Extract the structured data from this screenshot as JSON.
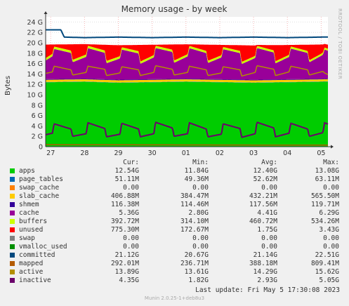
{
  "side_label": "RRDTOOL / TOBI OETIKER",
  "last_update": "Last update:  Fri May  5 17:30:08 2023",
  "version": "Munin 2.0.25-1+deb8u3",
  "legend": {
    "headers": [
      "Cur:",
      "Min:",
      "Avg:",
      "Max:"
    ],
    "rows": [
      {
        "name": "apps",
        "color": "#00cc00",
        "cur": "12.54G",
        "min": "11.84G",
        "avg": "12.40G",
        "max": "13.08G"
      },
      {
        "name": "page_tables",
        "color": "#0066b3",
        "cur": "51.11M",
        "min": "49.36M",
        "avg": "52.62M",
        "max": "63.11M"
      },
      {
        "name": "swap_cache",
        "color": "#ff8000",
        "cur": "0.00",
        "min": "0.00",
        "avg": "0.00",
        "max": "0.00"
      },
      {
        "name": "slab_cache",
        "color": "#ffcc00",
        "cur": "406.88M",
        "min": "384.47M",
        "avg": "432.21M",
        "max": "565.50M"
      },
      {
        "name": "shmem",
        "color": "#330099",
        "cur": "116.38M",
        "min": "114.46M",
        "avg": "117.56M",
        "max": "119.71M"
      },
      {
        "name": "cache",
        "color": "#990099",
        "cur": "5.36G",
        "min": "2.80G",
        "avg": "4.41G",
        "max": "6.29G"
      },
      {
        "name": "buffers",
        "color": "#ccff00",
        "cur": "392.72M",
        "min": "314.10M",
        "avg": "460.72M",
        "max": "534.26M"
      },
      {
        "name": "unused",
        "color": "#ff0000",
        "cur": "775.30M",
        "min": "172.67M",
        "avg": "1.75G",
        "max": "3.43G"
      },
      {
        "name": "swap",
        "color": "#808080",
        "cur": "0.00",
        "min": "0.00",
        "avg": "0.00",
        "max": "0.00"
      },
      {
        "name": "vmalloc_used",
        "color": "#008f00",
        "cur": "0.00",
        "min": "0.00",
        "avg": "0.00",
        "max": "0.00"
      },
      {
        "name": "committed",
        "color": "#00487d",
        "cur": "21.12G",
        "min": "20.67G",
        "avg": "21.14G",
        "max": "22.51G"
      },
      {
        "name": "mapped",
        "color": "#b35a00",
        "cur": "292.01M",
        "min": "236.71M",
        "avg": "388.18M",
        "max": "809.41M"
      },
      {
        "name": "active",
        "color": "#b38f00",
        "cur": "13.89G",
        "min": "13.61G",
        "avg": "14.29G",
        "max": "15.62G"
      },
      {
        "name": "inactive",
        "color": "#6b006b",
        "cur": "4.35G",
        "min": "1.82G",
        "avg": "2.93G",
        "max": "5.05G"
      }
    ]
  },
  "chart_data": {
    "type": "area",
    "title": "Memory usage - by week",
    "ylabel": "Bytes",
    "xlabel": "",
    "ylim": [
      0,
      25
    ],
    "y_unit": "G",
    "y_ticks": [
      0,
      2,
      4,
      6,
      8,
      10,
      12,
      14,
      16,
      18,
      20,
      22,
      24
    ],
    "y_tick_labels": [
      "0",
      "2 G",
      "4 G",
      "6 G",
      "8 G",
      "10 G",
      "12 G",
      "14 G",
      "16 G",
      "18 G",
      "20 G",
      "22 G",
      "24 G"
    ],
    "x_tick_labels": [
      "27",
      "28",
      "29",
      "30",
      "01",
      "02",
      "03",
      "04",
      "05"
    ],
    "x_ticks_days": [
      0,
      1,
      2,
      3,
      4,
      5,
      6,
      7,
      8
    ],
    "xlim_days": [
      -0.15,
      8.2
    ],
    "grid": true,
    "series": [
      {
        "name": "apps",
        "kind": "stack",
        "color": "#00cc00",
        "days": [
          -0.15,
          1,
          2,
          3,
          4,
          5,
          6,
          7,
          8,
          8.2
        ],
        "values": [
          12.4,
          12.5,
          12.3,
          12.4,
          12.5,
          12.4,
          12.3,
          12.4,
          12.5,
          12.54
        ]
      },
      {
        "name": "page_tables",
        "kind": "stack",
        "color": "#0066b3",
        "days": [
          -0.15,
          8.2
        ],
        "values": [
          0.05,
          0.05
        ]
      },
      {
        "name": "slab_cache",
        "kind": "stack",
        "color": "#ffcc00",
        "days": [
          -0.15,
          8.2
        ],
        "values": [
          0.43,
          0.41
        ]
      },
      {
        "name": "shmem",
        "kind": "stack",
        "color": "#330099",
        "days": [
          -0.15,
          8.2
        ],
        "values": [
          0.12,
          0.12
        ]
      },
      {
        "name": "cache",
        "kind": "stack",
        "color": "#990099",
        "days": [
          -0.15,
          0.05,
          0.1,
          0.6,
          0.65,
          1.05,
          1.1,
          1.6,
          1.65,
          2.05,
          2.1,
          2.6,
          2.65,
          3.05,
          3.1,
          3.6,
          3.65,
          4.05,
          4.1,
          4.6,
          4.65,
          5.05,
          5.1,
          5.6,
          5.65,
          6.05,
          6.1,
          6.6,
          6.65,
          7.05,
          7.1,
          7.6,
          7.65,
          8.05,
          8.1,
          8.2
        ],
        "values": [
          3.6,
          4.4,
          5.8,
          5.0,
          3.2,
          4.2,
          5.9,
          5.1,
          3.1,
          4.1,
          5.8,
          5.0,
          3.0,
          4.2,
          6.0,
          5.2,
          3.1,
          4.3,
          5.9,
          5.0,
          3.1,
          4.2,
          5.8,
          5.1,
          3.0,
          4.2,
          6.1,
          5.2,
          3.1,
          4.3,
          5.9,
          5.0,
          3.2,
          4.6,
          5.6,
          5.36
        ]
      },
      {
        "name": "buffers",
        "kind": "stack",
        "color": "#ccff00",
        "days": [
          -0.15,
          8.2
        ],
        "values": [
          0.46,
          0.39
        ]
      },
      {
        "name": "unused",
        "kind": "stack",
        "color": "#ff0000",
        "days": [
          -0.15,
          0.05,
          0.1,
          0.6,
          0.65,
          1.05,
          1.1,
          1.6,
          1.65,
          2.05,
          2.1,
          2.6,
          2.65,
          3.05,
          3.1,
          3.6,
          3.65,
          4.05,
          4.1,
          4.6,
          4.65,
          5.05,
          5.1,
          5.6,
          5.65,
          6.05,
          6.1,
          6.6,
          6.65,
          7.05,
          7.1,
          7.6,
          7.65,
          8.05,
          8.1,
          8.2
        ],
        "values": [
          2.6,
          1.8,
          0.4,
          1.2,
          3.0,
          2.0,
          0.3,
          1.1,
          3.1,
          2.1,
          0.4,
          1.2,
          3.2,
          2.0,
          0.2,
          1.0,
          3.1,
          1.9,
          0.3,
          1.2,
          3.1,
          2.0,
          0.4,
          1.1,
          3.2,
          2.0,
          0.2,
          1.0,
          3.1,
          1.9,
          0.3,
          1.2,
          3.0,
          1.6,
          0.7,
          0.78
        ]
      },
      {
        "name": "committed",
        "kind": "line",
        "color": "#00487d",
        "days": [
          -0.15,
          0.3,
          0.4,
          1.0,
          2.0,
          3.0,
          4.0,
          5.0,
          6.0,
          7.0,
          8.0,
          8.2
        ],
        "values": [
          22.5,
          22.5,
          21.1,
          21.0,
          21.1,
          21.0,
          21.1,
          21.0,
          21.1,
          21.0,
          21.1,
          21.12
        ]
      },
      {
        "name": "active",
        "kind": "line",
        "color": "#b38f00",
        "days": [
          -0.15,
          0.05,
          0.1,
          0.6,
          0.65,
          1.05,
          1.1,
          1.6,
          1.65,
          2.05,
          2.1,
          2.6,
          2.65,
          3.05,
          3.1,
          3.6,
          3.65,
          4.05,
          4.1,
          4.6,
          4.65,
          5.05,
          5.1,
          5.6,
          5.65,
          6.05,
          6.1,
          6.6,
          6.65,
          7.05,
          7.1,
          7.6,
          7.65,
          8.05,
          8.1,
          8.2
        ],
        "values": [
          14.1,
          14.4,
          15.5,
          14.8,
          13.8,
          14.3,
          15.5,
          14.9,
          13.7,
          14.2,
          15.4,
          14.8,
          13.7,
          14.3,
          15.6,
          14.9,
          13.8,
          14.3,
          15.5,
          14.8,
          13.7,
          14.2,
          15.4,
          14.8,
          13.6,
          14.3,
          15.6,
          14.9,
          13.7,
          14.4,
          15.5,
          14.8,
          13.8,
          14.5,
          14.2,
          13.89
        ]
      },
      {
        "name": "inactive",
        "kind": "line",
        "color": "#6b006b",
        "days": [
          -0.15,
          0.05,
          0.1,
          0.6,
          0.65,
          1.05,
          1.1,
          1.6,
          1.65,
          2.05,
          2.1,
          2.6,
          2.65,
          3.05,
          3.1,
          3.6,
          3.65,
          4.05,
          4.1,
          4.6,
          4.65,
          5.05,
          5.1,
          5.6,
          5.65,
          6.05,
          6.1,
          6.6,
          6.65,
          7.05,
          7.1,
          7.6,
          7.65,
          8.05,
          8.1,
          8.2
        ],
        "values": [
          2.3,
          2.6,
          4.4,
          3.4,
          2.0,
          2.5,
          4.6,
          3.5,
          1.9,
          2.4,
          4.5,
          3.4,
          1.9,
          2.5,
          4.7,
          3.6,
          2.0,
          2.5,
          4.6,
          3.4,
          1.9,
          2.4,
          4.4,
          3.5,
          1.8,
          2.5,
          4.7,
          3.6,
          1.9,
          2.6,
          4.5,
          3.4,
          2.0,
          2.7,
          4.6,
          4.35
        ]
      },
      {
        "name": "mapped",
        "kind": "line",
        "color": "#b35a00",
        "days": [
          -0.15,
          8.2
        ],
        "values": [
          0.39,
          0.29
        ]
      }
    ]
  }
}
